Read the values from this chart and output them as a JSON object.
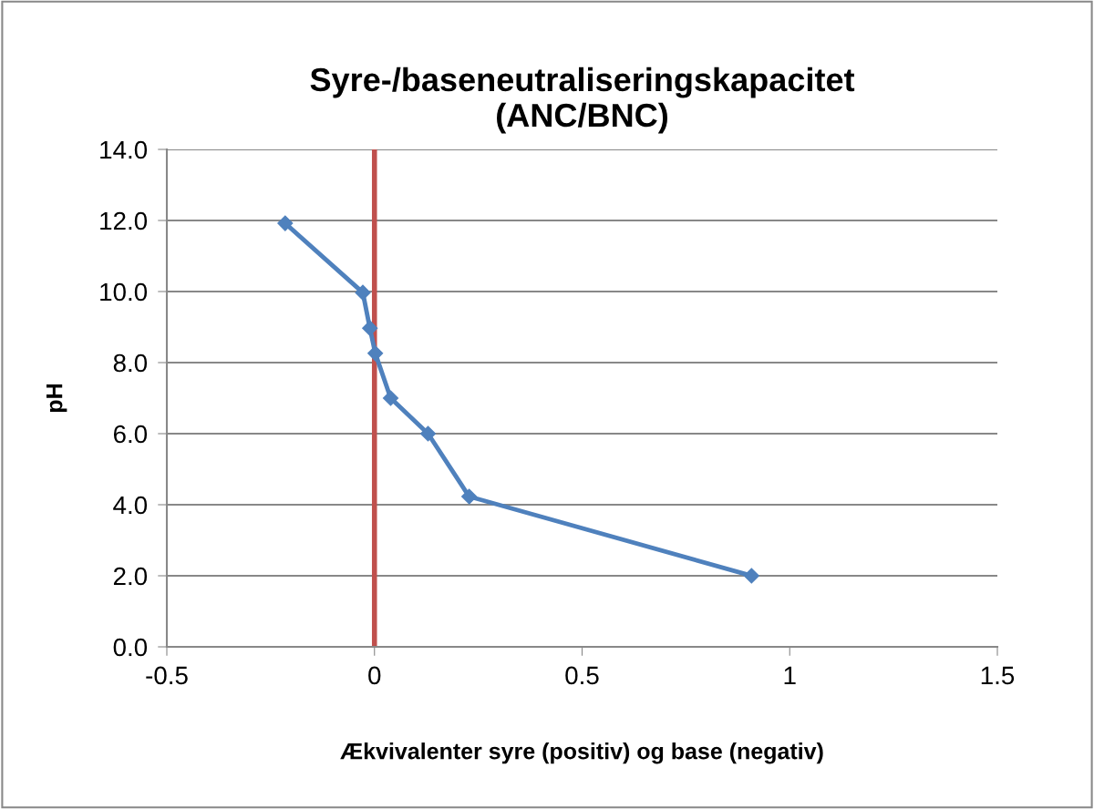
{
  "chart_data": {
    "type": "line",
    "title": "Syre-/baseneutraliseringskapacitet\n(ANC/BNC)",
    "xlabel": "Ækvivalenter syre (positiv) og base (negativ)",
    "ylabel": "pH",
    "series": [
      {
        "color": "#4f81bd",
        "x": [
          -0.215,
          -0.028,
          -0.011,
          0.002,
          0.039,
          0.129,
          0.228,
          0.908
        ],
        "values": [
          11.92,
          9.97,
          8.97,
          8.26,
          7.0,
          6.0,
          4.23,
          2.0
        ]
      }
    ],
    "xlim": [
      -0.5,
      1.5
    ],
    "xticks": [
      {
        "value": -0.5,
        "label": "-0.5"
      },
      0,
      {
        "value": 0.5,
        "label": "0.5"
      },
      1,
      {
        "value": 1.5,
        "label": "1.5"
      }
    ],
    "ylim": [
      0,
      14
    ],
    "yticks": [
      {
        "value": 0,
        "label": "0.0"
      },
      {
        "value": 2,
        "label": "2.0"
      },
      {
        "value": 4,
        "label": "4.0"
      },
      {
        "value": 6,
        "label": "6.0"
      },
      {
        "value": 8,
        "label": "8.0"
      },
      {
        "value": 10,
        "label": "10.0"
      },
      {
        "value": 12,
        "label": "12.0"
      },
      {
        "value": 14,
        "label": "14.0"
      }
    ],
    "ref_lines": [
      {
        "axis": "x",
        "value": 0,
        "color": "#c0504d"
      }
    ],
    "grid": "y",
    "marker": "diamond",
    "line_style": "solid",
    "legend": false
  }
}
